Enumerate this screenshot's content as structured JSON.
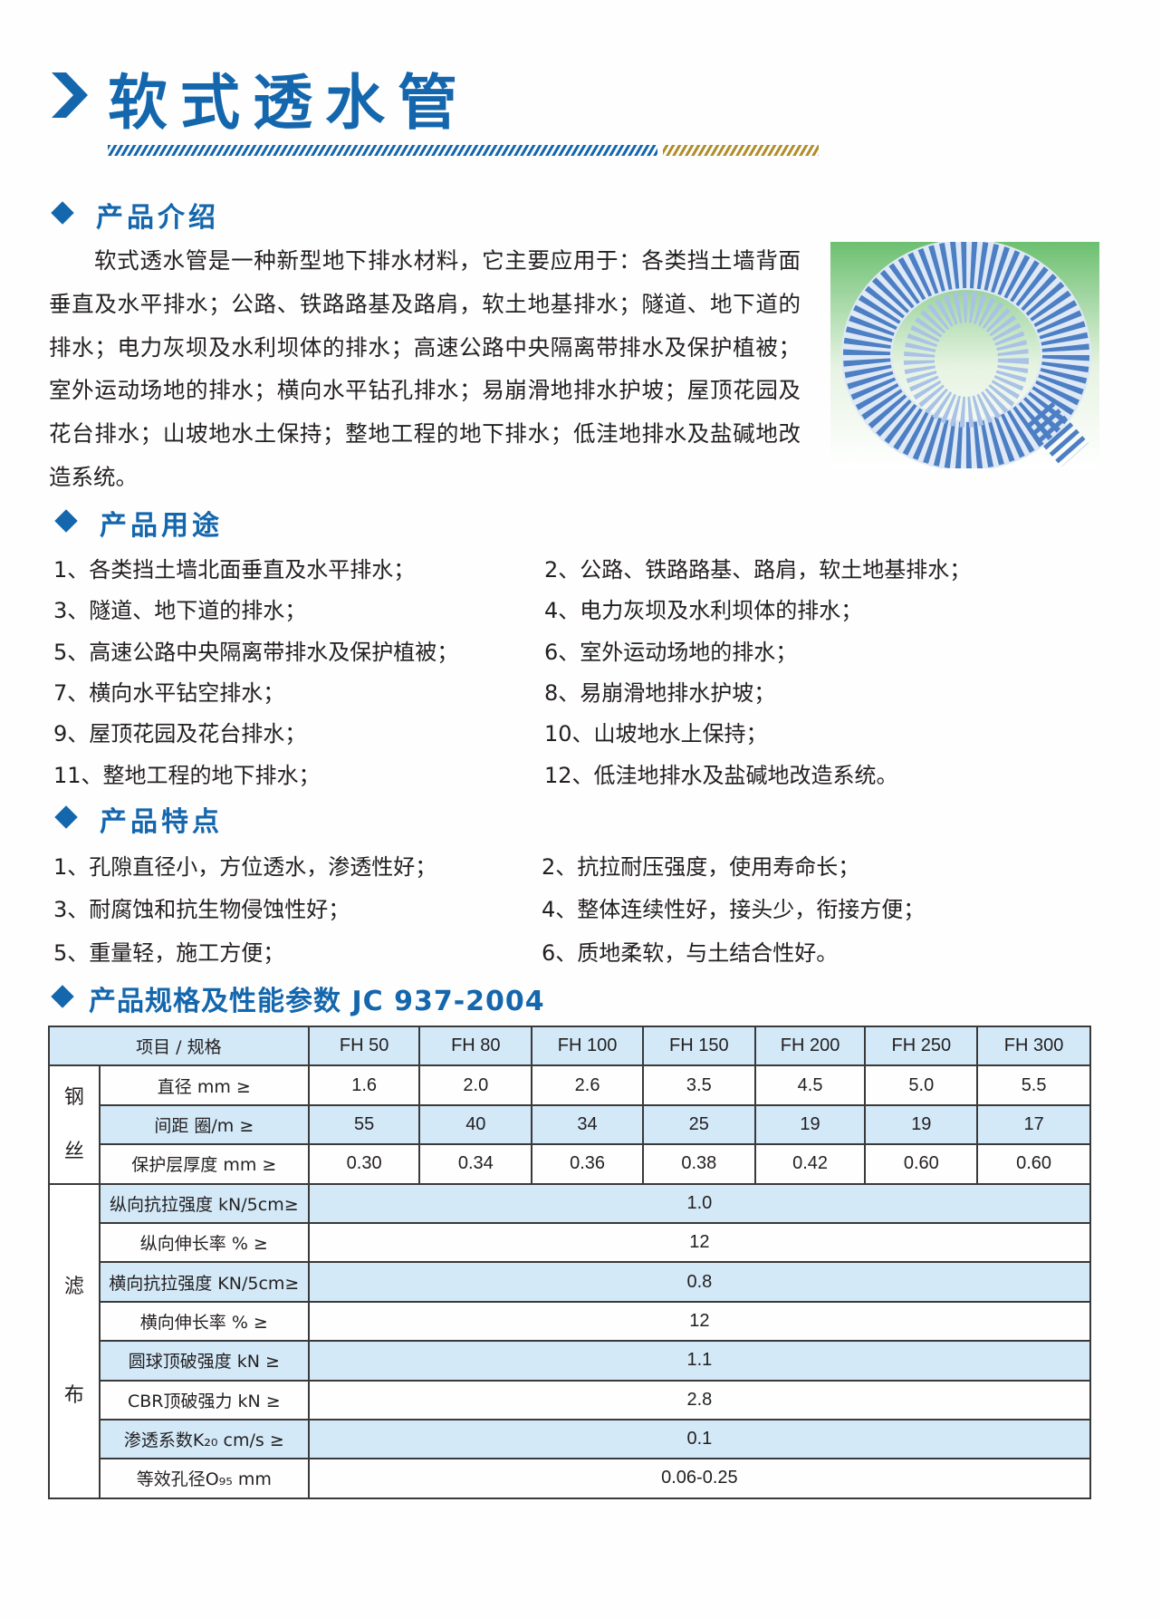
{
  "title": "软式透水管",
  "colors": {
    "brand_blue": "#1466ad",
    "row_blue": "#d3e9f8",
    "stripe_gold": "#b08d2c"
  },
  "sections": {
    "intro": {
      "heading": "产品介绍",
      "text": "软式透水管是一种新型地下排水材料，它主要应用于：各类挡土墙背面垂直及水平排水；公路、铁路路基及路肩，软土地基排水；隧道、地下道的排水；电力灰坝及水利坝体的排水；高速公路中央隔离带排水及保护植被；室外运动场地的排水；横向水平钻孔排水；易崩滑地排水护坡；屋顶花园及花台排水；山坡地水土保持；整地工程的地下排水；低洼地排水及盐碱地改造系统。"
    },
    "uses": {
      "heading": "产品用途",
      "items": [
        "1、各类挡土墙北面垂直及水平排水；",
        "2、公路、铁路路基、路肩，软土地基排水；",
        "3、隧道、地下道的排水；",
        "4、电力灰坝及水利坝体的排水；",
        "5、高速公路中央隔离带排水及保护植被；",
        "6、室外运动场地的排水；",
        "7、横向水平钻空排水；",
        "8、易崩滑地排水护坡；",
        "9、屋顶花园及花台排水；",
        "10、山坡地水上保持；",
        "11、整地工程的地下排水；",
        "12、低洼地排水及盐碱地改造系统。"
      ]
    },
    "features": {
      "heading": "产品特点",
      "items": [
        "1、孔隙直径小，方位透水，渗透性好；",
        "2、抗拉耐压强度，使用寿命长；",
        "3、耐腐蚀和抗生物侵蚀性好；",
        "4、整体连续性好，接头少，衔接方便；",
        "5、重量轻，施工方便；",
        "6、质地柔软，与土结合性好。"
      ]
    },
    "specs": {
      "heading": "产品规格及性能参数 JC 937-2004"
    }
  },
  "table": {
    "header": "项目 / 规格",
    "columns": [
      "FH 50",
      "FH 80",
      "FH 100",
      "FH 150",
      "FH 200",
      "FH 250",
      "FH 300"
    ],
    "steel_group": "钢丝",
    "steel_rows": [
      {
        "label": "直径 mm ≥",
        "values": [
          "1.6",
          "2.0",
          "2.6",
          "3.5",
          "4.5",
          "5.0",
          "5.5"
        ]
      },
      {
        "label": "间距 圈/m ≥",
        "values": [
          "55",
          "40",
          "34",
          "25",
          "19",
          "19",
          "17"
        ]
      },
      {
        "label": "保护层厚度 mm ≥",
        "values": [
          "0.30",
          "0.34",
          "0.36",
          "0.38",
          "0.42",
          "0.60",
          "0.60"
        ]
      }
    ],
    "filter_group": "滤布",
    "filter_rows": [
      {
        "label": "纵向抗拉强度 kN/5cm≥",
        "value": "1.0"
      },
      {
        "label": "纵向伸长率 % ≥",
        "value": "12"
      },
      {
        "label": "横向抗拉强度 KN/5cm≥",
        "value": "0.8"
      },
      {
        "label": "横向伸长率 % ≥",
        "value": "12"
      },
      {
        "label": "圆球顶破强度 kN ≥",
        "value": "1.1"
      },
      {
        "label": "CBR顶破强力 kN ≥",
        "value": "2.8"
      },
      {
        "label": "渗透系数K₂₀ cm/s ≥",
        "value": "0.1"
      },
      {
        "label": "等效孔径O₉₅ mm",
        "value": "0.06-0.25"
      }
    ]
  }
}
